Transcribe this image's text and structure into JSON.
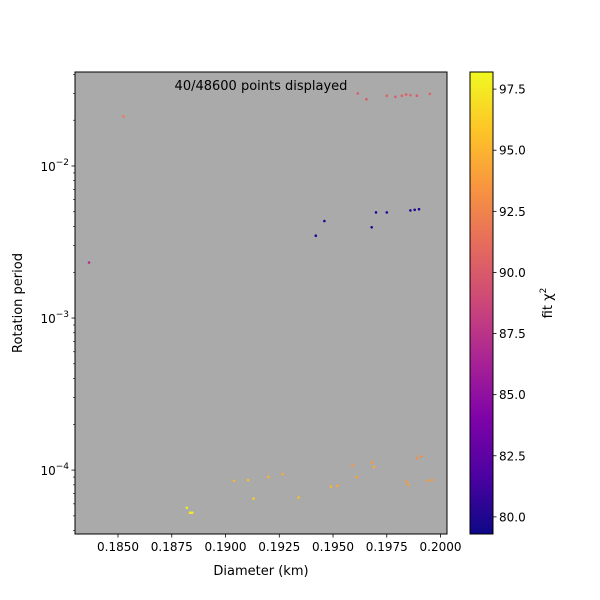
{
  "chart_data": {
    "type": "scatter",
    "title": "",
    "annotation": "40/48600 points displayed",
    "xlabel": "Diameter (km)",
    "ylabel": "Rotation period",
    "xlim": [
      0.183,
      0.2003
    ],
    "ylim": [
      3.8e-05,
      0.0415
    ],
    "yscale": "log",
    "grid": false,
    "background_color": "#aaaaaa",
    "x_ticks": [
      {
        "value": 0.185,
        "label": "0.1850"
      },
      {
        "value": 0.1875,
        "label": "0.1875"
      },
      {
        "value": 0.19,
        "label": "0.1900"
      },
      {
        "value": 0.1925,
        "label": "0.1925"
      },
      {
        "value": 0.195,
        "label": "0.1950"
      },
      {
        "value": 0.1975,
        "label": "0.1975"
      },
      {
        "value": 0.2,
        "label": "0.2000"
      }
    ],
    "y_ticks": [
      {
        "value": 0.0001,
        "base": "10",
        "exp": "−4"
      },
      {
        "value": 0.001,
        "base": "10",
        "exp": "−3"
      },
      {
        "value": 0.01,
        "base": "10",
        "exp": "−2"
      }
    ],
    "colorbar": {
      "label_main": "fit χ",
      "label_sup": "2",
      "colormap": "plasma",
      "range": [
        79.3,
        98.2
      ],
      "ticks": [
        {
          "value": 80.0,
          "label": "80.0"
        },
        {
          "value": 82.5,
          "label": "82.5"
        },
        {
          "value": 85.0,
          "label": "85.0"
        },
        {
          "value": 87.5,
          "label": "87.5"
        },
        {
          "value": 90.0,
          "label": "90.0"
        },
        {
          "value": 92.5,
          "label": "92.5"
        },
        {
          "value": 95.0,
          "label": "95.0"
        },
        {
          "value": 97.5,
          "label": "97.5"
        }
      ]
    },
    "points": [
      {
        "x": 0.18365,
        "y": 0.00232,
        "c": 87.0
      },
      {
        "x": 0.18525,
        "y": 0.0212,
        "c": 92.0
      },
      {
        "x": 0.1942,
        "y": 0.00348,
        "c": 80.0
      },
      {
        "x": 0.1946,
        "y": 0.00435,
        "c": 80.0
      },
      {
        "x": 0.1968,
        "y": 0.00395,
        "c": 80.0
      },
      {
        "x": 0.197,
        "y": 0.00495,
        "c": 80.0
      },
      {
        "x": 0.1975,
        "y": 0.00495,
        "c": 80.0
      },
      {
        "x": 0.1986,
        "y": 0.0051,
        "c": 80.0
      },
      {
        "x": 0.1988,
        "y": 0.00515,
        "c": 80.0
      },
      {
        "x": 0.199,
        "y": 0.0052,
        "c": 80.0
      },
      {
        "x": 0.19615,
        "y": 0.03,
        "c": 90.0
      },
      {
        "x": 0.19655,
        "y": 0.0275,
        "c": 90.0
      },
      {
        "x": 0.1975,
        "y": 0.029,
        "c": 90.5
      },
      {
        "x": 0.1979,
        "y": 0.0285,
        "c": 90.0
      },
      {
        "x": 0.1982,
        "y": 0.029,
        "c": 90.5
      },
      {
        "x": 0.1984,
        "y": 0.0295,
        "c": 90.0
      },
      {
        "x": 0.1986,
        "y": 0.0292,
        "c": 90.5
      },
      {
        "x": 0.1989,
        "y": 0.029,
        "c": 90.0
      },
      {
        "x": 0.1995,
        "y": 0.0298,
        "c": 90.5
      },
      {
        "x": 0.1882,
        "y": 5.65e-05,
        "c": 97.5
      },
      {
        "x": 0.18835,
        "y": 5.25e-05,
        "c": 97.5
      },
      {
        "x": 0.18845,
        "y": 5.25e-05,
        "c": 97.5
      },
      {
        "x": 0.1904,
        "y": 8.5e-05,
        "c": 95.0
      },
      {
        "x": 0.19105,
        "y": 8.6e-05,
        "c": 95.5
      },
      {
        "x": 0.1913,
        "y": 6.5e-05,
        "c": 96.0
      },
      {
        "x": 0.192,
        "y": 9e-05,
        "c": 95.0
      },
      {
        "x": 0.19265,
        "y": 9.4e-05,
        "c": 94.5
      },
      {
        "x": 0.1934,
        "y": 6.6e-05,
        "c": 95.5
      },
      {
        "x": 0.1949,
        "y": 7.8e-05,
        "c": 95.0
      },
      {
        "x": 0.1952,
        "y": 7.9e-05,
        "c": 94.5
      },
      {
        "x": 0.1959,
        "y": 0.000107,
        "c": 93.5
      },
      {
        "x": 0.1961,
        "y": 9e-05,
        "c": 94.0
      },
      {
        "x": 0.1968,
        "y": 0.000112,
        "c": 93.5
      },
      {
        "x": 0.1969,
        "y": 0.000105,
        "c": 94.5
      },
      {
        "x": 0.1984,
        "y": 8.4e-05,
        "c": 93.5
      },
      {
        "x": 0.1985,
        "y": 8e-05,
        "c": 94.0
      },
      {
        "x": 0.1989,
        "y": 0.00012,
        "c": 93.0
      },
      {
        "x": 0.1991,
        "y": 0.000123,
        "c": 93.0
      },
      {
        "x": 0.1994,
        "y": 8.5e-05,
        "c": 93.5
      },
      {
        "x": 0.1996,
        "y": 8.6e-05,
        "c": 94.0
      }
    ]
  }
}
